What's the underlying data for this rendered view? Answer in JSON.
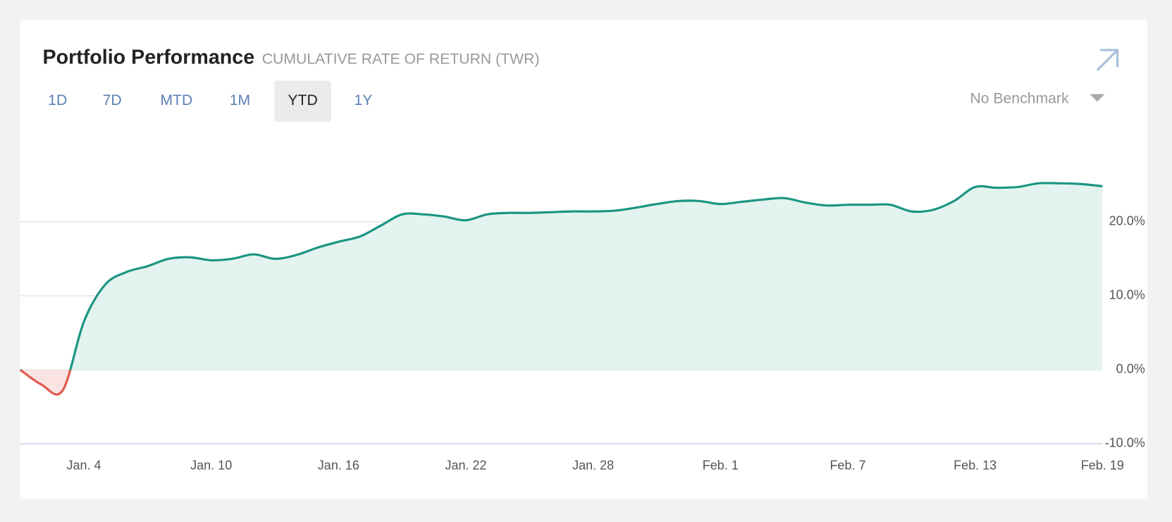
{
  "chart_data": {
    "type": "area",
    "title": "Portfolio Performance",
    "subtitle": "CUMULATIVE RATE OF RETURN (TWR)",
    "categories": [
      null,
      null,
      null,
      "Jan. 4",
      null,
      null,
      null,
      null,
      null,
      "Jan. 10",
      null,
      null,
      null,
      null,
      null,
      "Jan. 16",
      null,
      null,
      null,
      null,
      null,
      "Jan. 22",
      null,
      null,
      null,
      null,
      null,
      "Jan. 28",
      null,
      null,
      null,
      null,
      null,
      "Feb. 1",
      null,
      null,
      null,
      null,
      null,
      "Feb. 7",
      null,
      null,
      null,
      null,
      null,
      "Feb. 13",
      null,
      null,
      null,
      null,
      null,
      "Feb. 19"
    ],
    "series": [
      {
        "name": "Portfolio",
        "color": "#1a9583",
        "negative_color": "#e05a4f",
        "fill": "#e3f3ef",
        "negative_fill": "#fbe3e3",
        "values": [
          0,
          -2.0,
          -2.8,
          6.5,
          11.5,
          13.2,
          14,
          15,
          15.2,
          14.8,
          15,
          15.6,
          15,
          15.5,
          16.5,
          17.3,
          18,
          19.5,
          21,
          21,
          20.7,
          20.2,
          21,
          21.2,
          21.2,
          21.3,
          21.4,
          21.4,
          21.5,
          21.9,
          22.4,
          22.8,
          22.8,
          22.4,
          22.7,
          23,
          23.2,
          22.6,
          22.2,
          22.3,
          22.3,
          22.3,
          21.4,
          21.6,
          22.8,
          24.7,
          24.6,
          24.7,
          25.2,
          25.2,
          25.1,
          24.8
        ]
      }
    ],
    "ylim": [
      -10,
      32
    ],
    "yticks": [
      {
        "value": -10,
        "label": "-10.0%"
      },
      {
        "value": 0,
        "label": "0.0%"
      },
      {
        "value": 10,
        "label": "10.0%"
      },
      {
        "value": 20,
        "label": "20.0%"
      }
    ],
    "grid": true
  },
  "controls": {
    "ranges": [
      "1D",
      "7D",
      "MTD",
      "1M",
      "YTD",
      "1Y"
    ],
    "selected": 4,
    "benchmark": "No Benchmark"
  }
}
